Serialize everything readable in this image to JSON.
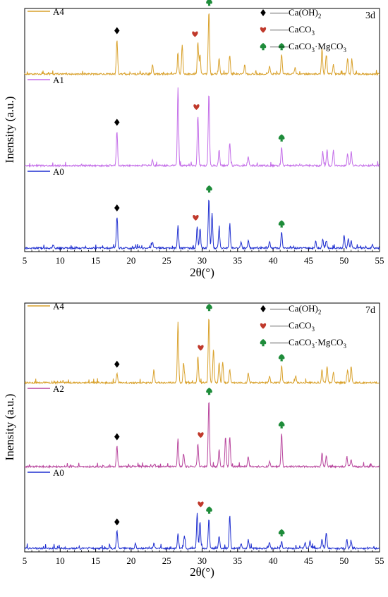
{
  "chart_data": [
    {
      "type": "line",
      "panel_label": "3d",
      "xlabel": "2θ(°)",
      "ylabel": "Inensity (a.u.)",
      "xlim": [
        5,
        55
      ],
      "xticks": [
        5,
        10,
        15,
        20,
        25,
        30,
        35,
        40,
        45,
        50,
        55
      ],
      "legend": [
        {
          "marker": "diamond",
          "label": "——Ca(OH)",
          "sub": "2",
          "extra": ""
        },
        {
          "marker": "heart",
          "label": "——CaCO",
          "sub": "3",
          "extra": ""
        },
        {
          "marker": "spade",
          "label": "——CaCO",
          "sub": "3",
          "extra": "·MgCO",
          "sub2": "3"
        }
      ],
      "series": [
        {
          "name": "A4",
          "color": "#d9a12b",
          "peaks": [
            [
              18.0,
              0.55
            ],
            [
              23.0,
              0.15
            ],
            [
              26.6,
              0.32
            ],
            [
              27.2,
              0.45
            ],
            [
              29.4,
              0.5
            ],
            [
              29.7,
              0.3
            ],
            [
              30.95,
              1.0
            ],
            [
              32.4,
              0.25
            ],
            [
              33.9,
              0.3
            ],
            [
              36.0,
              0.15
            ],
            [
              39.5,
              0.12
            ],
            [
              41.2,
              0.3
            ],
            [
              43.1,
              0.1
            ],
            [
              46.9,
              0.4
            ],
            [
              47.5,
              0.3
            ],
            [
              48.5,
              0.15
            ],
            [
              50.5,
              0.25
            ],
            [
              51.1,
              0.2
            ]
          ]
        },
        {
          "name": "A1",
          "color": "#c36ce8",
          "peaks": [
            [
              18.0,
              0.45
            ],
            [
              23.0,
              0.08
            ],
            [
              26.6,
              1.0
            ],
            [
              29.4,
              0.65
            ],
            [
              30.95,
              0.95
            ],
            [
              32.4,
              0.2
            ],
            [
              33.9,
              0.3
            ],
            [
              36.5,
              0.12
            ],
            [
              41.2,
              0.25
            ],
            [
              47.0,
              0.18
            ],
            [
              47.6,
              0.2
            ],
            [
              48.5,
              0.2
            ],
            [
              50.5,
              0.15
            ],
            [
              51.0,
              0.18
            ]
          ]
        },
        {
          "name": "A0",
          "color": "#1f2fd0",
          "peaks": [
            [
              9.0,
              0.05
            ],
            [
              18.0,
              0.5
            ],
            [
              23.0,
              0.1
            ],
            [
              26.6,
              0.35
            ],
            [
              29.3,
              0.35
            ],
            [
              29.7,
              0.3
            ],
            [
              30.95,
              0.8
            ],
            [
              31.4,
              0.55
            ],
            [
              32.4,
              0.3
            ],
            [
              33.9,
              0.35
            ],
            [
              35.5,
              0.1
            ],
            [
              36.5,
              0.12
            ],
            [
              39.5,
              0.1
            ],
            [
              41.2,
              0.25
            ],
            [
              46.0,
              0.12
            ],
            [
              47.0,
              0.15
            ],
            [
              47.5,
              0.12
            ],
            [
              50.0,
              0.2
            ],
            [
              50.6,
              0.15
            ],
            [
              51.0,
              0.12
            ],
            [
              54.0,
              0.05
            ]
          ]
        }
      ],
      "markers": [
        {
          "series": "A4",
          "symbol": "diamond",
          "x": 18.0
        },
        {
          "series": "A4",
          "symbol": "heart",
          "x": 29.0
        },
        {
          "series": "A4",
          "symbol": "spade",
          "x": 31.0
        },
        {
          "series": "A4",
          "symbol": "spade",
          "x": 41.2
        },
        {
          "series": "A1",
          "symbol": "diamond",
          "x": 18.0
        },
        {
          "series": "A1",
          "symbol": "heart",
          "x": 29.2
        },
        {
          "series": "A1",
          "symbol": "spade",
          "x": 41.2
        },
        {
          "series": "A0",
          "symbol": "diamond",
          "x": 18.0
        },
        {
          "series": "A0",
          "symbol": "heart",
          "x": 29.1
        },
        {
          "series": "A0",
          "symbol": "spade",
          "x": 31.0
        },
        {
          "series": "A0",
          "symbol": "spade",
          "x": 41.2
        }
      ]
    },
    {
      "type": "line",
      "panel_label": "7d",
      "xlabel": "2θ(°)",
      "ylabel": "Inensity (a.u.)",
      "xlim": [
        5,
        55
      ],
      "xticks": [
        5,
        10,
        15,
        20,
        25,
        30,
        35,
        40,
        45,
        50,
        55
      ],
      "legend": [
        {
          "marker": "diamond",
          "label": "——Ca(OH)",
          "sub": "2",
          "extra": ""
        },
        {
          "marker": "heart",
          "label": "——CaCO",
          "sub": "3",
          "extra": ""
        },
        {
          "marker": "spade",
          "label": "——CaCO",
          "sub": "3",
          "extra": "·MgCO",
          "sub2": "3"
        }
      ],
      "series": [
        {
          "name": "A4",
          "color": "#d9a12b",
          "peaks": [
            [
              18.0,
              0.15
            ],
            [
              23.2,
              0.2
            ],
            [
              26.6,
              0.9
            ],
            [
              27.4,
              0.3
            ],
            [
              29.4,
              0.4
            ],
            [
              30.95,
              1.0
            ],
            [
              31.6,
              0.5
            ],
            [
              32.4,
              0.3
            ],
            [
              32.9,
              0.3
            ],
            [
              33.9,
              0.2
            ],
            [
              36.5,
              0.15
            ],
            [
              39.5,
              0.1
            ],
            [
              41.2,
              0.25
            ],
            [
              43.2,
              0.1
            ],
            [
              46.9,
              0.2
            ],
            [
              47.6,
              0.25
            ],
            [
              48.5,
              0.15
            ],
            [
              50.5,
              0.2
            ],
            [
              51.0,
              0.25
            ]
          ]
        },
        {
          "name": "A2",
          "color": "#b8459d",
          "peaks": [
            [
              18.0,
              0.32
            ],
            [
              23.3,
              0.05
            ],
            [
              26.6,
              0.42
            ],
            [
              27.4,
              0.2
            ],
            [
              29.4,
              0.35
            ],
            [
              30.95,
              1.0
            ],
            [
              32.4,
              0.25
            ],
            [
              33.3,
              0.45
            ],
            [
              33.9,
              0.45
            ],
            [
              36.5,
              0.15
            ],
            [
              39.5,
              0.08
            ],
            [
              41.2,
              0.5
            ],
            [
              46.9,
              0.2
            ],
            [
              47.5,
              0.15
            ],
            [
              50.4,
              0.15
            ],
            [
              51.0,
              0.1
            ]
          ]
        },
        {
          "name": "A0",
          "color": "#1f2fd0",
          "peaks": [
            [
              18.0,
              0.3
            ],
            [
              20.6,
              0.08
            ],
            [
              23.2,
              0.08
            ],
            [
              26.6,
              0.25
            ],
            [
              27.5,
              0.2
            ],
            [
              29.3,
              0.6
            ],
            [
              29.7,
              0.45
            ],
            [
              30.95,
              0.5
            ],
            [
              32.4,
              0.2
            ],
            [
              33.9,
              0.55
            ],
            [
              35.5,
              0.08
            ],
            [
              36.5,
              0.15
            ],
            [
              39.5,
              0.1
            ],
            [
              41.2,
              0.12
            ],
            [
              44.5,
              0.1
            ],
            [
              45.2,
              0.12
            ],
            [
              46.9,
              0.15
            ],
            [
              47.5,
              0.25
            ],
            [
              50.4,
              0.15
            ],
            [
              51.0,
              0.12
            ]
          ]
        }
      ],
      "markers": [
        {
          "series": "A4",
          "symbol": "diamond",
          "x": 18.0
        },
        {
          "series": "A4",
          "symbol": "heart",
          "x": 29.8
        },
        {
          "series": "A4",
          "symbol": "spade",
          "x": 31.0
        },
        {
          "series": "A4",
          "symbol": "spade",
          "x": 41.2
        },
        {
          "series": "A2",
          "symbol": "diamond",
          "x": 18.0
        },
        {
          "series": "A2",
          "symbol": "heart",
          "x": 29.8
        },
        {
          "series": "A2",
          "symbol": "spade",
          "x": 31.0
        },
        {
          "series": "A2",
          "symbol": "spade",
          "x": 41.2
        },
        {
          "series": "A0",
          "symbol": "diamond",
          "x": 18.0
        },
        {
          "series": "A0",
          "symbol": "heart",
          "x": 29.8
        },
        {
          "series": "A0",
          "symbol": "spade",
          "x": 31.0
        },
        {
          "series": "A0",
          "symbol": "spade",
          "x": 41.2
        }
      ]
    }
  ],
  "colors": {
    "diamond": "#000000",
    "heart": "#c0392b",
    "spade": "#1e8c3a",
    "axis": "#000000"
  }
}
